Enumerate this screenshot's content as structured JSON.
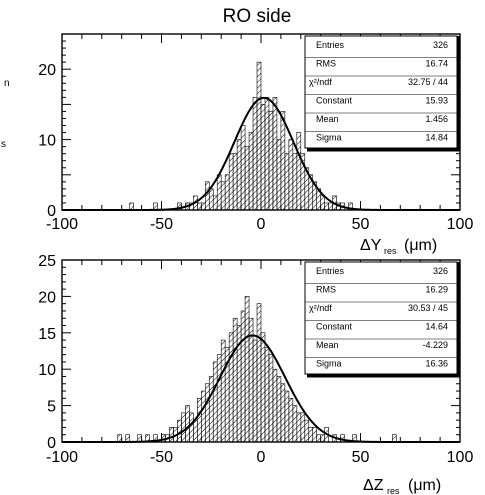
{
  "chart_data": [
    {
      "type": "bar",
      "title": "RO side",
      "xlabel": "ΔY_res (μm)",
      "xlabel_main": "ΔY",
      "xlabel_sub": "res",
      "xlabel_unit": "(μm)",
      "ylabel_fragments": [
        "n",
        "s"
      ],
      "xlim": [
        -100,
        100
      ],
      "ylim": [
        0,
        25
      ],
      "xticks": [
        "-100",
        "-50",
        "0",
        "50",
        "100"
      ],
      "yticks": [
        "0",
        "10",
        "20"
      ],
      "grid": false,
      "stats_box": {
        "position": "top-right",
        "rows": [
          {
            "label": "Entries",
            "value": "326"
          },
          {
            "label": "RMS",
            "value": "16.74"
          },
          {
            "label": "χ²/ndf",
            "value": "32.75   /   44"
          },
          {
            "label": "Constant",
            "value": "15.93"
          },
          {
            "label": "Mean",
            "value": "1.456"
          },
          {
            "label": "Sigma",
            "value": "14.84"
          }
        ]
      },
      "bin_width": 2,
      "bin_centers": [
        -65,
        -63,
        -61,
        -59,
        -57,
        -55,
        -53,
        -51,
        -49,
        -47,
        -45,
        -43,
        -41,
        -39,
        -37,
        -35,
        -33,
        -31,
        -29,
        -27,
        -25,
        -23,
        -21,
        -19,
        -17,
        -15,
        -13,
        -11,
        -9,
        -7,
        -5,
        -3,
        -1,
        1,
        3,
        5,
        7,
        9,
        11,
        13,
        15,
        17,
        19,
        21,
        23,
        25,
        27,
        29,
        31,
        33,
        35,
        37,
        39,
        41,
        43,
        45,
        47,
        49,
        51,
        53,
        55,
        57,
        59,
        61
      ],
      "values": [
        1,
        0,
        0,
        0,
        0,
        0,
        1,
        0,
        0,
        0,
        0,
        0,
        1,
        0,
        1,
        1,
        2,
        1,
        1,
        4,
        3,
        2,
        5,
        4,
        5,
        8,
        8,
        10,
        12,
        9,
        11,
        16,
        21,
        15,
        16,
        14,
        16,
        10,
        14,
        8,
        10,
        8,
        11,
        8,
        6,
        5,
        4,
        3,
        2,
        1,
        1,
        2,
        1,
        1,
        0,
        1,
        0,
        0,
        0,
        0,
        0,
        0,
        0,
        0
      ],
      "fit": {
        "type": "gaussian",
        "constant": 15.93,
        "mean": 1.456,
        "sigma": 14.84
      }
    },
    {
      "type": "bar",
      "title": "",
      "xlabel": "ΔZ_res (μm)",
      "xlabel_main": "ΔZ",
      "xlabel_sub": "res",
      "xlabel_unit": "(μm)",
      "xlim": [
        -100,
        100
      ],
      "ylim": [
        0,
        25
      ],
      "xticks": [
        "-100",
        "-50",
        "0",
        "50",
        "100"
      ],
      "yticks": [
        "0",
        "5",
        "10",
        "15",
        "20",
        "25"
      ],
      "grid": false,
      "stats_box": {
        "position": "top-right",
        "rows": [
          {
            "label": "Entries",
            "value": "326"
          },
          {
            "label": "RMS",
            "value": "16.29"
          },
          {
            "label": "χ²/ndf",
            "value": "30.53   /   45"
          },
          {
            "label": "Constant",
            "value": "14.64"
          },
          {
            "label": "Mean",
            "value": "-4.229"
          },
          {
            "label": "Sigma",
            "value": "16.36"
          }
        ]
      },
      "bin_width": 2,
      "bin_centers": [
        -71,
        -69,
        -67,
        -65,
        -63,
        -61,
        -59,
        -57,
        -55,
        -53,
        -51,
        -49,
        -47,
        -45,
        -43,
        -41,
        -39,
        -37,
        -35,
        -33,
        -31,
        -29,
        -27,
        -25,
        -23,
        -21,
        -19,
        -17,
        -15,
        -13,
        -11,
        -9,
        -7,
        -5,
        -3,
        -1,
        1,
        3,
        5,
        7,
        9,
        11,
        13,
        15,
        17,
        19,
        21,
        23,
        25,
        27,
        29,
        31,
        33,
        35,
        37,
        39,
        41,
        43,
        45,
        47,
        49,
        51,
        53,
        55,
        57,
        59,
        61,
        63,
        65,
        67,
        69
      ],
      "values": [
        1,
        0,
        1,
        0,
        0,
        1,
        0,
        1,
        0,
        1,
        0,
        1,
        1,
        2,
        2,
        3,
        4,
        5,
        4,
        3,
        6,
        7,
        8,
        9,
        11,
        12,
        14,
        13,
        15,
        17,
        16,
        18,
        20,
        17,
        14,
        19,
        15,
        13,
        12,
        10,
        9,
        8,
        7,
        6,
        5,
        4,
        4,
        3,
        2,
        2,
        1,
        1,
        2,
        0,
        1,
        0,
        1,
        0,
        0,
        1,
        0,
        0,
        0,
        0,
        0,
        0,
        0,
        0,
        0,
        1,
        0
      ],
      "fit": {
        "type": "gaussian",
        "constant": 14.64,
        "mean": -4.229,
        "sigma": 16.36
      }
    }
  ]
}
